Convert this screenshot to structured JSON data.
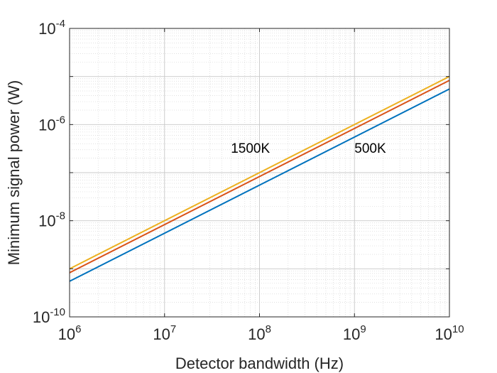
{
  "chart_data": {
    "type": "line",
    "title": "",
    "xlabel": "Detector bandwidth (Hz)",
    "ylabel": "Minimum signal power (W)",
    "x_scale": "log",
    "y_scale": "log",
    "xlim": [
      1000000,
      10000000000
    ],
    "ylim": [
      1e-10,
      0.0001
    ],
    "x_ticks": [
      {
        "value": 1000000,
        "base": "10",
        "exp": "6"
      },
      {
        "value": 10000000,
        "base": "10",
        "exp": "7"
      },
      {
        "value": 100000000,
        "base": "10",
        "exp": "8"
      },
      {
        "value": 1000000000,
        "base": "10",
        "exp": "9"
      },
      {
        "value": 10000000000,
        "base": "10",
        "exp": "10"
      }
    ],
    "y_ticks": [
      {
        "value": 1e-10,
        "base": "10",
        "exp": "-10"
      },
      {
        "value": 1e-08,
        "base": "10",
        "exp": "-8"
      },
      {
        "value": 1e-06,
        "base": "10",
        "exp": "-6"
      },
      {
        "value": 0.0001,
        "base": "10",
        "exp": "-4"
      }
    ],
    "grid": true,
    "minor_grid": true,
    "series": [
      {
        "color": "#0072BD",
        "x": [
          1000000,
          10000000000
        ],
        "y": [
          5.5e-10,
          5.5e-06
        ]
      },
      {
        "color": "#D95319",
        "x": [
          1000000,
          10000000000
        ],
        "y": [
          8.3e-10,
          8.3e-06
        ]
      },
      {
        "color": "#EDB120",
        "x": [
          1000000,
          10000000000
        ],
        "y": [
          1e-09,
          1e-05
        ]
      }
    ],
    "annotations": [
      {
        "text": "1500K",
        "x": 50000000,
        "y": 2.6e-07
      },
      {
        "text": "500K",
        "x": 1000000000,
        "y": 2.6e-07
      }
    ]
  }
}
